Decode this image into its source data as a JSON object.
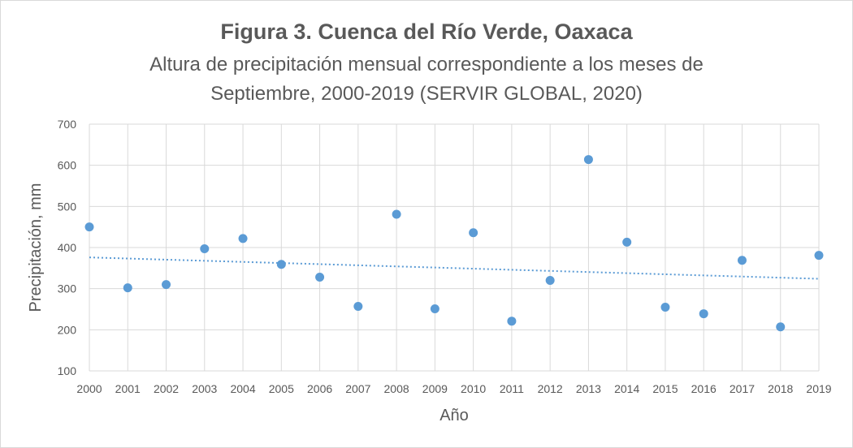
{
  "chart_data": {
    "type": "scatter",
    "title": "Figura 3.  Cuenca del Río Verde, Oaxaca",
    "subtitle_line1": "Altura de precipitación mensual correspondiente a los meses de",
    "subtitle_line2": "Septiembre, 2000-2019  (SERVIR GLOBAL, 2020)",
    "xlabel": "Año",
    "ylabel": "Precipitación, mm",
    "xlim": [
      2000,
      2019
    ],
    "ylim": [
      100,
      700
    ],
    "yticks": [
      100,
      200,
      300,
      400,
      500,
      600,
      700
    ],
    "xticks": [
      2000,
      2001,
      2002,
      2003,
      2004,
      2005,
      2006,
      2007,
      2008,
      2009,
      2010,
      2011,
      2012,
      2013,
      2014,
      2015,
      2016,
      2017,
      2018,
      2019
    ],
    "grid": true,
    "series": [
      {
        "name": "Precipitación",
        "color": "#5b9bd5",
        "x": [
          2000,
          2001,
          2002,
          2003,
          2004,
          2005,
          2006,
          2007,
          2008,
          2009,
          2010,
          2011,
          2012,
          2013,
          2014,
          2015,
          2016,
          2017,
          2018,
          2019
        ],
        "y": [
          450,
          302,
          310,
          397,
          422,
          359,
          328,
          257,
          481,
          251,
          436,
          221,
          320,
          614,
          413,
          255,
          239,
          369,
          207,
          381
        ]
      }
    ],
    "trendline": {
      "type": "linear",
      "color": "#5b9bd5",
      "start": 376,
      "end": 324
    }
  }
}
